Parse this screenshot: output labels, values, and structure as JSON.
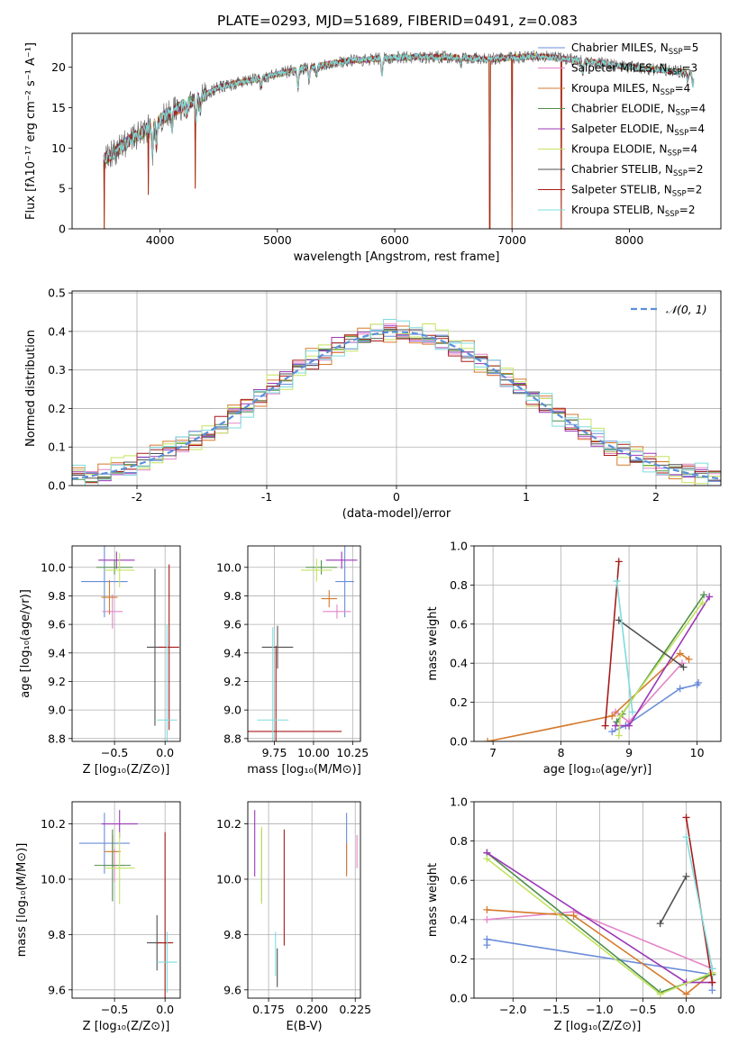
{
  "figure": {
    "title": "PLATE=0293, MJD=51689, FIBERID=0491, z=0.083"
  },
  "colors": {
    "axis": "#000000",
    "grid": "#b0b0b0",
    "palette": [
      "#6a8dd8",
      "#e485c8",
      "#d57a2c",
      "#4f8f4a",
      "#9b38b6",
      "#c3e35f",
      "#505050",
      "#a81b1b",
      "#7edcdc"
    ],
    "normal_curve": "#5b8fd9"
  },
  "chart_data": [
    {
      "id": "spectrum",
      "type": "line",
      "title": "PLATE=0293, MJD=51689, FIBERID=0491, z=0.083",
      "xlabel": "wavelength [Angstrom, rest frame]",
      "ylabel": "Flux [fλ10⁻¹⁷ erg cm⁻² s⁻¹ A⁻¹]",
      "xlim": [
        3250,
        8780
      ],
      "ylim": [
        0,
        24.2
      ],
      "xticks": [
        4000,
        5000,
        6000,
        7000,
        8000
      ],
      "yticks": [
        0,
        5,
        10,
        15,
        20
      ],
      "grid": false,
      "legend_position": "right",
      "continuum_anchors": [
        [
          3520,
          8.5
        ],
        [
          3700,
          10.5
        ],
        [
          3900,
          12.5
        ],
        [
          4100,
          14.5
        ],
        [
          4300,
          16.0
        ],
        [
          4500,
          17.5
        ],
        [
          4800,
          18.5
        ],
        [
          5200,
          19.8
        ],
        [
          5600,
          20.8
        ],
        [
          6000,
          21.2
        ],
        [
          6400,
          21.3
        ],
        [
          6800,
          21.0
        ],
        [
          7200,
          21.4
        ],
        [
          7600,
          20.8
        ],
        [
          8000,
          20.0
        ],
        [
          8400,
          19.5
        ],
        [
          8550,
          19.3
        ]
      ],
      "absorption_features": [
        [
          3934,
          3.5
        ],
        [
          3969,
          3.0
        ],
        [
          4102,
          2.0
        ],
        [
          4226,
          1.2
        ],
        [
          4305,
          2.5
        ],
        [
          4341,
          1.5
        ],
        [
          4861,
          1.2
        ],
        [
          5175,
          2.2
        ],
        [
          5270,
          1.5
        ],
        [
          5335,
          1.2
        ],
        [
          5892,
          2.0
        ],
        [
          6563,
          0.8
        ],
        [
          7605,
          1.5
        ],
        [
          8498,
          1.0
        ],
        [
          8542,
          1.5
        ],
        [
          8662,
          1.2
        ]
      ],
      "spikes": [
        [
          3525,
          0
        ],
        [
          3900,
          4.2
        ],
        [
          4300,
          5.0
        ],
        [
          6810,
          0
        ],
        [
          7420,
          0
        ],
        [
          7000,
          0
        ]
      ],
      "series": [
        {
          "name": "Chabrier MILES, N",
          "sub": "SSP",
          "suffix": "=5"
        },
        {
          "name": "Salpeter MILES, N",
          "sub": "SSP",
          "suffix": "=3"
        },
        {
          "name": "Kroupa MILES, N",
          "sub": "SSP",
          "suffix": "=4"
        },
        {
          "name": "Chabrier ELODIE, N",
          "sub": "SSP",
          "suffix": "=4"
        },
        {
          "name": "Salpeter ELODIE, N",
          "sub": "SSP",
          "suffix": "=4"
        },
        {
          "name": "Kroupa ELODIE, N",
          "sub": "SSP",
          "suffix": "=4"
        },
        {
          "name": "Chabrier STELIB, N",
          "sub": "SSP",
          "suffix": "=2"
        },
        {
          "name": "Salpeter STELIB, N",
          "sub": "SSP",
          "suffix": "=2"
        },
        {
          "name": "Kroupa STELIB, N",
          "sub": "SSP",
          "suffix": "=2"
        }
      ]
    },
    {
      "id": "residuals",
      "type": "line",
      "xlabel": "(data-model)/error",
      "ylabel": "Normed distribution",
      "xlim": [
        -2.5,
        2.5
      ],
      "ylim": [
        0,
        0.505
      ],
      "xticks": [
        -2,
        -1,
        0,
        1,
        2
      ],
      "yticks": [
        0.0,
        0.1,
        0.2,
        0.3,
        0.4,
        0.5
      ],
      "grid": true,
      "legend": "𝒩(0, 1)",
      "legend_position": "top-right",
      "bin_width": 0.1,
      "jitter": [
        0.006,
        -0.01,
        0.004,
        0.012,
        -0.007,
        -0.011,
        0.009,
        0.002,
        -0.004,
        0.015,
        -0.013,
        0.007
      ]
    },
    {
      "id": "age_vs_Z",
      "type": "scatter",
      "xlabel": "Z [log₁₀(Z/Z⊙)]",
      "ylabel": "age  [log₁₀(age/yr)]",
      "xlim": [
        -0.92,
        0.15
      ],
      "ylim": [
        8.78,
        10.15
      ],
      "xticks": [
        -0.5,
        0.0
      ],
      "yticks": [
        8.8,
        9.0,
        9.2,
        9.4,
        9.6,
        9.8,
        10.0
      ],
      "grid": true,
      "points": [
        {
          "x": -0.6,
          "y": 9.9,
          "xerr": 0.23,
          "yerr": 0.25
        },
        {
          "x": -0.52,
          "y": 9.69,
          "xerr": 0.1,
          "yerr": 0.12
        },
        {
          "x": -0.55,
          "y": 9.79,
          "xerr": 0.08,
          "yerr": 0.12
        },
        {
          "x": -0.5,
          "y": 10.0,
          "xerr": 0.18,
          "yerr": 0.05
        },
        {
          "x": -0.48,
          "y": 10.05,
          "xerr": 0.18,
          "yerr": 0.06
        },
        {
          "x": -0.45,
          "y": 9.98,
          "xerr": 0.15,
          "yerr": 0.12
        },
        {
          "x": -0.1,
          "y": 9.44,
          "xerr": 0.08,
          "yerr": 0.55
        },
        {
          "x": 0.04,
          "y": 9.44,
          "xerr": 0.1,
          "yerr": 0.58
        },
        {
          "x": 0.02,
          "y": 8.93,
          "xerr": 0.1,
          "yerr": 0.67
        }
      ]
    },
    {
      "id": "age_vs_mass",
      "type": "scatter",
      "xlabel": "mass [log₁₀(M/M⊙)]",
      "ylabel": "",
      "xlim": [
        9.58,
        10.3
      ],
      "ylim": [
        8.78,
        10.15
      ],
      "xticks": [
        9.75,
        10.0,
        10.25
      ],
      "yticks": [
        8.8,
        9.0,
        9.2,
        9.4,
        9.6,
        9.8,
        10.0
      ],
      "grid": true,
      "points": [
        {
          "x": 10.2,
          "y": 9.9,
          "xerr": 0.06,
          "yerr": 0.25
        },
        {
          "x": 10.15,
          "y": 9.69,
          "xerr": 0.09,
          "yerr": 0.05
        },
        {
          "x": 10.1,
          "y": 9.78,
          "xerr": 0.05,
          "yerr": 0.06
        },
        {
          "x": 10.05,
          "y": 10.0,
          "xerr": 0.1,
          "yerr": 0.05
        },
        {
          "x": 10.18,
          "y": 10.05,
          "xerr": 0.1,
          "yerr": 0.06
        },
        {
          "x": 10.02,
          "y": 9.98,
          "xerr": 0.1,
          "yerr": 0.08
        },
        {
          "x": 9.77,
          "y": 9.44,
          "xerr": 0.1,
          "yerr": 0.15
        },
        {
          "x": 9.76,
          "y": 8.85,
          "xerr": 0.42,
          "yerr": 0.6
        },
        {
          "x": 9.74,
          "y": 8.93,
          "xerr": 0.1,
          "yerr": 0.65
        }
      ]
    },
    {
      "id": "weight_vs_age",
      "type": "line",
      "xlabel": "age  [log₁₀(age/yr)]",
      "ylabel": "mass weight",
      "xlim": [
        6.72,
        10.35
      ],
      "ylim": [
        0,
        1.0
      ],
      "xticks": [
        7,
        8,
        9,
        10
      ],
      "yticks": [
        0.0,
        0.2,
        0.4,
        0.6,
        0.8,
        1.0
      ],
      "grid": true,
      "series": [
        {
          "x": [
            8.75,
            8.95,
            9.75,
            10.0,
            10.02
          ],
          "y": [
            0.05,
            0.08,
            0.27,
            0.29,
            0.3
          ]
        },
        {
          "x": [
            8.8,
            9.0,
            9.78
          ],
          "y": [
            0.15,
            0.1,
            0.4
          ]
        },
        {
          "x": [
            6.92,
            8.75,
            9.75,
            9.88
          ],
          "y": [
            0.0,
            0.13,
            0.45,
            0.42
          ]
        },
        {
          "x": [
            8.82,
            8.9,
            10.1
          ],
          "y": [
            0.1,
            0.14,
            0.75
          ]
        },
        {
          "x": [
            8.8,
            9.0,
            10.18
          ],
          "y": [
            0.08,
            0.08,
            0.74
          ]
        },
        {
          "x": [
            8.85,
            8.87,
            10.08
          ],
          "y": [
            0.03,
            0.13,
            0.71
          ]
        },
        {
          "x": [
            8.85,
            9.8
          ],
          "y": [
            0.62,
            0.38
          ]
        },
        {
          "x": [
            8.65,
            8.85
          ],
          "y": [
            0.08,
            0.92
          ]
        },
        {
          "x": [
            8.82,
            9.05
          ],
          "y": [
            0.82,
            0.15
          ]
        }
      ]
    },
    {
      "id": "mass_vs_Z",
      "type": "scatter",
      "xlabel": "Z [log₁₀(Z/Z⊙)]",
      "ylabel": "mass [log₁₀(M/M⊙)]",
      "xlim": [
        -0.92,
        0.15
      ],
      "ylim": [
        9.57,
        10.28
      ],
      "xticks": [
        -0.5,
        0.0
      ],
      "yticks": [
        9.6,
        9.8,
        10.0,
        10.2
      ],
      "grid": true,
      "points": [
        {
          "x": -0.6,
          "y": 10.13,
          "xerr": 0.25,
          "yerr": 0.11
        },
        {
          "x": -0.5,
          "y": 10.05,
          "xerr": 0.1,
          "yerr": 0.06
        },
        {
          "x": -0.52,
          "y": 10.1,
          "xerr": 0.08,
          "yerr": 0.06
        },
        {
          "x": -0.52,
          "y": 10.05,
          "xerr": 0.18,
          "yerr": 0.13
        },
        {
          "x": -0.45,
          "y": 10.2,
          "xerr": 0.18,
          "yerr": 0.05
        },
        {
          "x": -0.45,
          "y": 10.04,
          "xerr": 0.15,
          "yerr": 0.13
        },
        {
          "x": -0.08,
          "y": 9.77,
          "xerr": 0.1,
          "yerr": 0.1
        },
        {
          "x": 0.0,
          "y": 9.77,
          "xerr": 0.08,
          "yerr": 0.4
        },
        {
          "x": 0.02,
          "y": 9.7,
          "xerr": 0.1,
          "yerr": 0.11
        }
      ]
    },
    {
      "id": "mass_vs_EBV",
      "type": "scatter",
      "xlabel": "E(B-V)",
      "ylabel": "",
      "xlim": [
        0.163,
        0.228
      ],
      "ylim": [
        9.57,
        10.28
      ],
      "xticks": [
        0.175,
        0.2,
        0.225
      ],
      "yticks": [
        9.6,
        9.8,
        10.0,
        10.2
      ],
      "grid": true,
      "points": [
        {
          "x": 0.22,
          "y": 10.13,
          "xerr": 0,
          "yerr": 0.11
        },
        {
          "x": 0.226,
          "y": 10.1,
          "xerr": 0,
          "yerr": 0.06
        },
        {
          "x": 0.22,
          "y": 10.07,
          "xerr": 0,
          "yerr": 0.06
        },
        {
          "x": 0.171,
          "y": 10.05,
          "xerr": 0,
          "yerr": 0.13
        },
        {
          "x": 0.167,
          "y": 10.13,
          "xerr": 0,
          "yerr": 0.12
        },
        {
          "x": 0.171,
          "y": 10.05,
          "xerr": 0,
          "yerr": 0.14
        },
        {
          "x": 0.18,
          "y": 9.68,
          "xerr": 0,
          "yerr": 0.07
        },
        {
          "x": 0.184,
          "y": 9.97,
          "xerr": 0,
          "yerr": 0.21
        },
        {
          "x": 0.179,
          "y": 9.73,
          "xerr": 0,
          "yerr": 0.08
        }
      ]
    },
    {
      "id": "weight_vs_Z",
      "type": "line",
      "xlabel": "Z [log₁₀(Z/Z⊙)]",
      "ylabel": "mass weight",
      "xlim": [
        -2.45,
        0.4
      ],
      "ylim": [
        0,
        1.0
      ],
      "xticks": [
        -2.0,
        -1.5,
        -1.0,
        -0.5,
        0.0
      ],
      "yticks": [
        0.0,
        0.2,
        0.4,
        0.6,
        0.8,
        1.0
      ],
      "grid": true,
      "series": [
        {
          "x": [
            -2.3,
            -2.3,
            0.3,
            0.3
          ],
          "y": [
            0.27,
            0.3,
            0.12,
            0.04
          ]
        },
        {
          "x": [
            -2.3,
            -1.3,
            0.3
          ],
          "y": [
            0.4,
            0.44,
            0.15
          ]
        },
        {
          "x": [
            -2.3,
            -1.3,
            0.0,
            0.3
          ],
          "y": [
            0.45,
            0.42,
            0.02,
            0.13
          ]
        },
        {
          "x": [
            -2.3,
            -0.3,
            0.3
          ],
          "y": [
            0.74,
            0.03,
            0.12
          ]
        },
        {
          "x": [
            -2.3,
            0.0,
            0.3
          ],
          "y": [
            0.74,
            0.08,
            0.08
          ]
        },
        {
          "x": [
            -2.3,
            -0.3,
            0.3
          ],
          "y": [
            0.71,
            0.02,
            0.13
          ]
        },
        {
          "x": [
            -0.3,
            0.0
          ],
          "y": [
            0.38,
            0.62
          ]
        },
        {
          "x": [
            0.0,
            0.3
          ],
          "y": [
            0.92,
            0.08
          ]
        },
        {
          "x": [
            0.0,
            0.3
          ],
          "y": [
            0.82,
            0.15
          ]
        }
      ]
    }
  ]
}
